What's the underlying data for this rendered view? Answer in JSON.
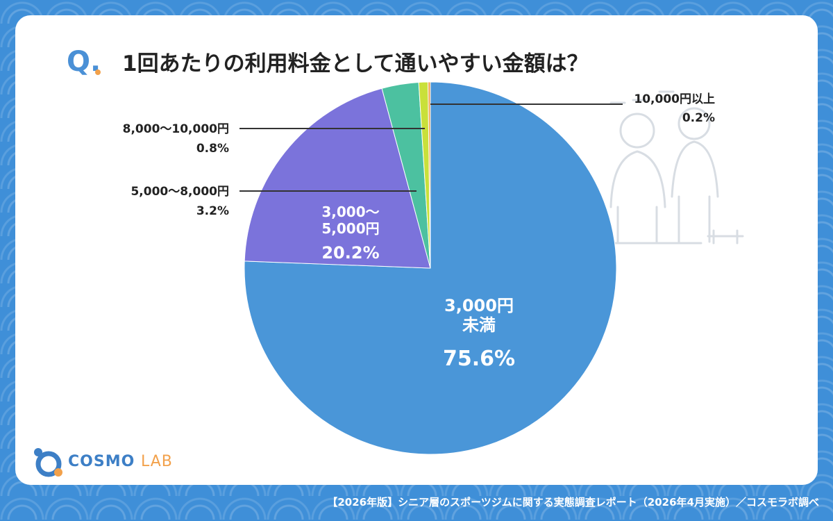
{
  "header": {
    "q_label": "Q.",
    "title": "1回あたりの利用料金として通いやすい金額は？"
  },
  "chart_data": {
    "type": "pie",
    "title": "1回あたりの利用料金として通いやすい金額は？",
    "slices": [
      {
        "label_lines": [
          "3,000円",
          "未満"
        ],
        "value": 75.6,
        "value_label": "75.6%",
        "color": "#4a96d8",
        "label_style": "inside"
      },
      {
        "label_lines": [
          "3,000～",
          "5,000円"
        ],
        "value": 20.2,
        "value_label": "20.2%",
        "color": "#7b73db",
        "label_style": "inside"
      },
      {
        "label_lines": [
          "5,000～8,000円"
        ],
        "value": 3.2,
        "value_label": "3.2%",
        "color": "#4cc1a0",
        "label_style": "left"
      },
      {
        "label_lines": [
          "8,000～10,000円"
        ],
        "value": 0.8,
        "value_label": "0.8%",
        "color": "#c9e03a",
        "label_style": "left"
      },
      {
        "label_lines": [
          "10,000円以上"
        ],
        "value": 0.2,
        "value_label": "0.2%",
        "color": "#f2a14b",
        "label_style": "right"
      }
    ]
  },
  "logo": {
    "name": "COSMO",
    "suffix": "LAB"
  },
  "footer": {
    "source": "【2026年版】シニア層のスポーツジムに関する実態調査レポート（2026年4月実施）／コスモラボ調べ"
  }
}
